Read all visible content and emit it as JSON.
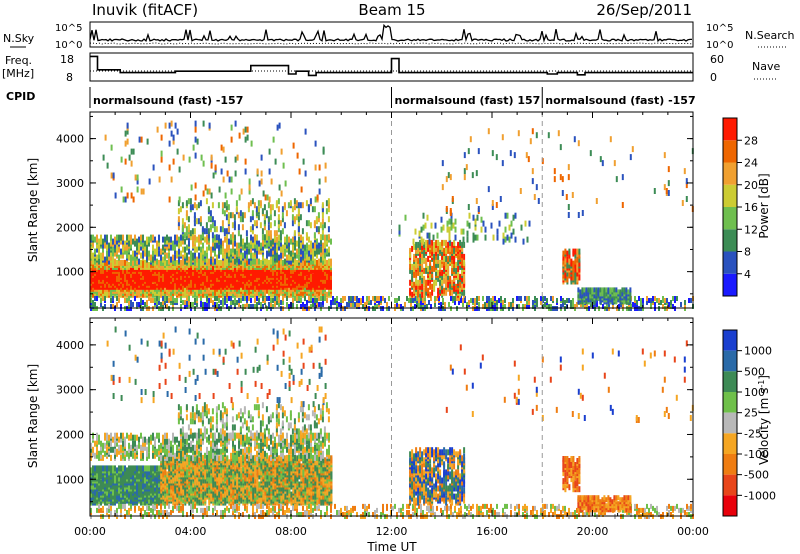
{
  "header": {
    "station": "Inuvik (fitACF)",
    "beam": "Beam 15",
    "date": "26/Sep/2011"
  },
  "left_labels": {
    "nsky": "N.Sky",
    "freq": "Freq.",
    "mhz": "[MHz]",
    "cpid": "CPID"
  },
  "right_labels": {
    "nsearch": "N.Search",
    "nave": "Nave"
  },
  "scales": {
    "nsky_top": "10^5",
    "nsky_bottom": "10^0",
    "freq_top": "18",
    "freq_bottom": "8",
    "nave_top": "60",
    "nave_bottom": "0"
  },
  "cpid_segments": [
    {
      "label": "normalsound (fast) -157",
      "start_hour": 0
    },
    {
      "label": "normalsound (fast) 157",
      "start_hour": 12
    },
    {
      "label": "normalsound (fast) -157",
      "start_hour": 18
    }
  ],
  "chart_data": [
    {
      "type": "heatmap",
      "name": "power",
      "ylabel": "Slant Range [km]",
      "xlabel": "Time UT",
      "x_ticks": [
        "00:00",
        "04:00",
        "08:00",
        "12:00",
        "16:00",
        "20:00",
        "00:00"
      ],
      "x_range_hours": [
        0,
        24
      ],
      "y_ticks": [
        1000,
        2000,
        3000,
        4000
      ],
      "y_range_km": [
        180,
        4600
      ],
      "colorbar": {
        "label": "Power [dB]",
        "ticks": [
          "4",
          "8",
          "12",
          "16",
          "20",
          "24",
          "28"
        ],
        "colors": [
          "#1a1aff",
          "#2a52be",
          "#3c8c55",
          "#6fbf4f",
          "#cccc33",
          "#f0a030",
          "#ee6600",
          "#ff1a00"
        ]
      }
    },
    {
      "type": "heatmap",
      "name": "velocity",
      "ylabel": "Slant Range [km]",
      "xlabel": "Time UT",
      "x_ticks": [
        "00:00",
        "04:00",
        "08:00",
        "12:00",
        "16:00",
        "20:00",
        "00:00"
      ],
      "x_range_hours": [
        0,
        24
      ],
      "y_ticks": [
        1000,
        2000,
        3000,
        4000
      ],
      "y_range_km": [
        180,
        4600
      ],
      "colorbar": {
        "label": "Velocity [m s^-1]",
        "ticks": [
          "1000",
          "500",
          "100",
          "25",
          "-25",
          "-100",
          "-500",
          "-1000"
        ],
        "colors": [
          "#1a3fcf",
          "#2a6aa8",
          "#3d8a55",
          "#6fc04a",
          "#b8b8b8",
          "#f5a623",
          "#ef7d12",
          "#e8451a",
          "#e8000b"
        ]
      }
    }
  ],
  "xlabel": "Time UT"
}
